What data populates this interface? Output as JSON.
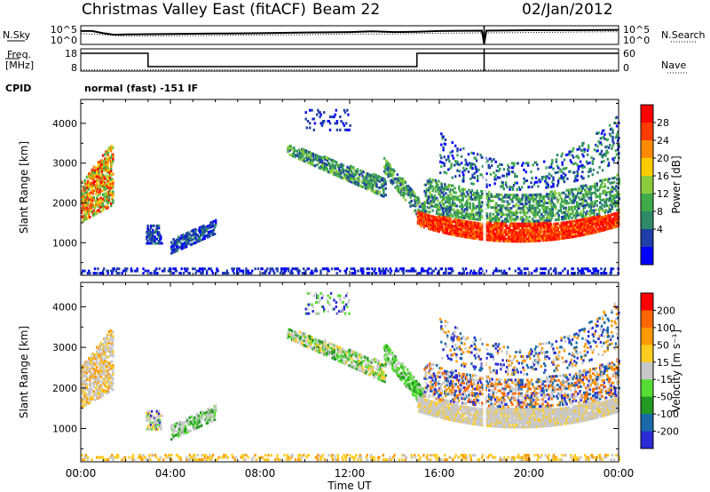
{
  "header": {
    "station": "Christmas Valley East (fitACF)",
    "beam": "Beam 22",
    "date": "02/Jan/2012"
  },
  "side_labels": {
    "nsky": "N.Sky",
    "nsearch": "N.Search",
    "freq_line1": "Freq.",
    "freq_line2": "[MHz]",
    "nave": "Nave",
    "cpid": "CPID",
    "cpid_value": "normal (fast) -151 IF"
  },
  "colors": {
    "power": [
      "#0000ff",
      "#1e3fa8",
      "#2f8a6a",
      "#3faa4a",
      "#8ccc3c",
      "#ffcc00",
      "#ff8a00",
      "#ff3b00",
      "#ff0000"
    ],
    "velocity": [
      "#2a2ad6",
      "#1a6aa8",
      "#229922",
      "#55dd33",
      "#c8c8c8",
      "#ffcc22",
      "#ff9900",
      "#ff6600",
      "#ff0000"
    ]
  },
  "chart_data": [
    {
      "type": "line",
      "name": "noise-panel",
      "left_label": "N.Sky",
      "right_label": "N.Search",
      "y_ticks_left": [
        "10^5",
        "10^0"
      ],
      "y_ticks_right": [
        "10^5",
        "10^0"
      ],
      "x_range": [
        0,
        24
      ],
      "series": [
        {
          "name": "N.Sky",
          "style": "solid",
          "x": [
            0,
            0.5,
            1,
            1.5,
            2,
            4,
            6,
            8,
            10,
            12,
            13,
            14,
            15,
            16,
            17.9,
            18,
            18.1,
            20,
            22,
            24
          ],
          "y": [
            3.6,
            3.6,
            3.0,
            2.6,
            2.7,
            2.8,
            2.9,
            3.0,
            3.2,
            3.3,
            3.5,
            3.3,
            3.4,
            3.6,
            3.7,
            0.2,
            3.7,
            3.8,
            3.8,
            3.9
          ]
        },
        {
          "name": "N.Search",
          "style": "dotted",
          "x": [
            0,
            1,
            2,
            4,
            6,
            8,
            10,
            12,
            14,
            16,
            18,
            20,
            22,
            24
          ],
          "y": [
            2.9,
            2.6,
            2.2,
            2.3,
            2.4,
            2.5,
            2.6,
            2.8,
            2.8,
            3.0,
            3.1,
            3.2,
            3.3,
            3.4
          ]
        }
      ]
    },
    {
      "type": "line",
      "name": "frequency-panel",
      "left_label": "Freq. [MHz]",
      "right_label": "Nave",
      "y_ticks_left": [
        "18",
        "8"
      ],
      "y_ticks_right": [
        "60",
        "0"
      ],
      "x_range": [
        0,
        24
      ],
      "series": [
        {
          "name": "Freq.",
          "style": "solid",
          "x": [
            0,
            3,
            3,
            15,
            15,
            24
          ],
          "y": [
            16,
            16,
            10,
            10,
            16,
            16
          ]
        },
        {
          "name": "Nave",
          "style": "dotted",
          "x": [
            0,
            24
          ],
          "y": [
            8.5,
            8.5
          ]
        }
      ]
    },
    {
      "type": "heatmap",
      "name": "power-panel",
      "ylabel": "Slant Range [km]",
      "colorbar_label": "Power [dB]",
      "colorbar_ticks": [
        "28",
        "24",
        "20",
        "16",
        "12",
        "8",
        "4"
      ],
      "y_ticks": [
        "4000",
        "3000",
        "2000",
        "1000"
      ],
      "x_range": [
        0,
        24
      ],
      "y_range": [
        180,
        4600
      ]
    },
    {
      "type": "heatmap",
      "name": "velocity-panel",
      "ylabel": "Slant Range [km]",
      "colorbar_label": "Velocity [m s⁻¹]",
      "colorbar_ticks": [
        "200",
        "100",
        "50",
        "15",
        "-15",
        "-50",
        "-100",
        "-200"
      ],
      "y_ticks": [
        "4000",
        "3000",
        "2000",
        "1000"
      ],
      "x_range": [
        0,
        24
      ],
      "y_range": [
        180,
        4600
      ],
      "x_ticks": [
        "00:00",
        "04:00",
        "08:00",
        "12:00",
        "16:00",
        "20:00",
        "00:00"
      ],
      "xlabel": "Time UT"
    }
  ]
}
